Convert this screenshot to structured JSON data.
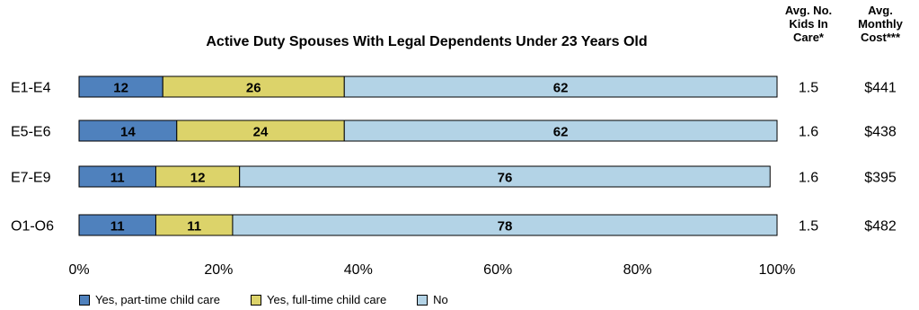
{
  "chart_data": {
    "type": "bar",
    "orientation": "horizontal",
    "stacked": true,
    "title": "Active Duty Spouses With Legal Dependents Under 23 Years Old",
    "categories": [
      "E1-E4",
      "E5-E6",
      "E7-E9",
      "O1-O6"
    ],
    "series": [
      {
        "name": "Yes, part-time child care",
        "values": [
          12,
          14,
          11,
          11
        ],
        "color": "#4f81bd"
      },
      {
        "name": "Yes, full-time child care",
        "values": [
          26,
          24,
          12,
          11
        ],
        "color": "#dcd36a"
      },
      {
        "name": "No",
        "values": [
          62,
          62,
          76,
          78
        ],
        "color": "#b3d3e6"
      }
    ],
    "xlim": [
      0,
      100
    ],
    "xticks": [
      "0%",
      "20%",
      "40%",
      "60%",
      "80%",
      "100%"
    ],
    "extra_columns": [
      {
        "header": "Avg. No.\nKids In\nCare*",
        "values": [
          "1.5",
          "1.6",
          "1.6",
          "1.5"
        ]
      },
      {
        "header": "Avg.\nMonthly\nCost***",
        "values": [
          "$441",
          "$438",
          "$395",
          "$482"
        ]
      }
    ],
    "legend_position": "bottom-left",
    "grid": false
  }
}
